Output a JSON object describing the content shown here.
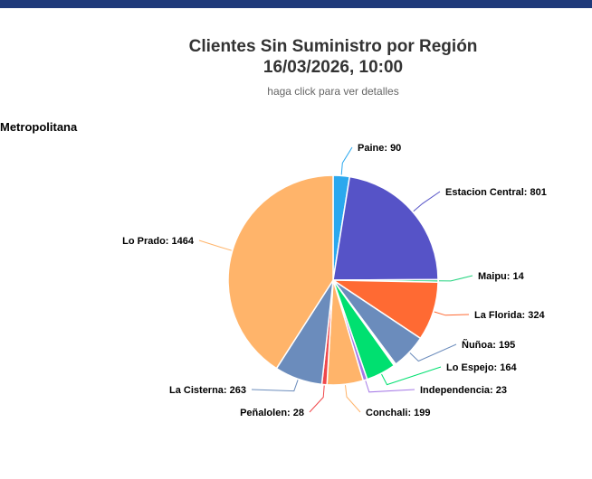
{
  "header": {
    "title_line1": "Clientes Sin Suministro por Región",
    "title_line2": "16/03/2026, 10:00",
    "subtitle": "haga click para ver detalles"
  },
  "region_label": "Metropolitana",
  "colors": {
    "topbar": "#1f3a7a"
  },
  "chart_data": {
    "type": "pie",
    "title": "Clientes Sin Suministro por Región",
    "subtitle": "haga click para ver detalles",
    "series_name": "Metropolitana",
    "slices": [
      {
        "name": "Paine",
        "value": 90,
        "color": "#2ba8ee"
      },
      {
        "name": "Estacion Central",
        "value": 801,
        "color": "#5653c7"
      },
      {
        "name": "Maipu",
        "value": 14,
        "color": "#22d37e"
      },
      {
        "name": "La Florida",
        "value": 324,
        "color": "#ff6a33"
      },
      {
        "name": "Ñuñoa",
        "value": 195,
        "color": "#6b8cbc"
      },
      {
        "name": "slice-pink",
        "value": 6,
        "color": "#ff8ab0"
      },
      {
        "name": "slice-red",
        "value": 6,
        "color": "#f0515a"
      },
      {
        "name": "Lo Espejo",
        "value": 164,
        "color": "#00e070"
      },
      {
        "name": "Independencia",
        "value": 23,
        "color": "#a67ae6"
      },
      {
        "name": "Conchali",
        "value": 199,
        "color": "#ffb46a"
      },
      {
        "name": "Peñalolen",
        "value": 28,
        "color": "#f0474a"
      },
      {
        "name": "La Cisterna",
        "value": 263,
        "color": "#6b8cbc"
      },
      {
        "name": "Lo Prado",
        "value": 1464,
        "color": "#ffb46a"
      }
    ],
    "labels": [
      {
        "slice": 0,
        "text": "Paine: 90"
      },
      {
        "slice": 1,
        "text": "Estacion Central: 801"
      },
      {
        "slice": 2,
        "text": "Maipu: 14"
      },
      {
        "slice": 3,
        "text": "La Florida: 324"
      },
      {
        "slice": 4,
        "text": "Ñuñoa: 195"
      },
      {
        "slice": 7,
        "text": "Lo Espejo: 164"
      },
      {
        "slice": 8,
        "text": "Independencia: 23"
      },
      {
        "slice": 9,
        "text": "Conchali: 199"
      },
      {
        "slice": 10,
        "text": "Peñalolen: 28"
      },
      {
        "slice": 11,
        "text": "La Cisterna: 263"
      },
      {
        "slice": 12,
        "text": "Lo Prado: 1464"
      }
    ]
  }
}
